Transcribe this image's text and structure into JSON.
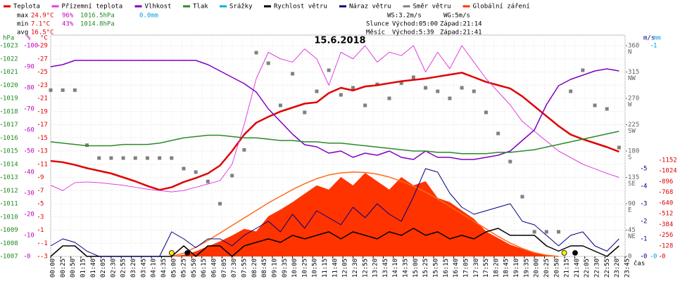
{
  "chart_data": {
    "type": "line",
    "title": "15.6.2018",
    "xlabel": "čas",
    "x": [
      "00:00",
      "00:30",
      "01:00",
      "01:30",
      "02:00",
      "02:30",
      "03:00",
      "03:30",
      "04:00",
      "04:30",
      "05:00",
      "05:30",
      "06:00",
      "06:30",
      "07:00",
      "07:30",
      "08:00",
      "08:30",
      "09:00",
      "09:30",
      "10:00",
      "10:30",
      "11:00",
      "11:30",
      "12:00",
      "12:30",
      "13:00",
      "13:30",
      "14:00",
      "14:30",
      "15:00",
      "15:30",
      "16:00",
      "16:30",
      "17:00",
      "17:30",
      "18:00",
      "18:30",
      "19:00",
      "19:30",
      "20:00",
      "20:30",
      "21:00",
      "21:30",
      "22:00",
      "22:30",
      "23:00",
      "23:30"
    ],
    "xticks": [
      "00:00",
      "00:25",
      "00:50",
      "01:15",
      "01:40",
      "02:05",
      "02:30",
      "02:55",
      "03:20",
      "03:45",
      "04:10",
      "04:35",
      "05:00",
      "05:25",
      "05:50",
      "06:15",
      "06:40",
      "07:05",
      "07:30",
      "07:55",
      "08:20",
      "08:45",
      "09:10",
      "09:35",
      "10:00",
      "10:25",
      "10:50",
      "11:15",
      "11:40",
      "12:05",
      "12:30",
      "12:55",
      "13:20",
      "13:45",
      "14:10",
      "14:35",
      "15:00",
      "15:25",
      "15:50",
      "16:15",
      "16:40",
      "17:05",
      "17:30",
      "17:55",
      "18:20",
      "18:45",
      "19:10",
      "19:35",
      "20:00",
      "20:25",
      "20:50",
      "21:15",
      "21:40",
      "22:05",
      "22:30",
      "22:55",
      "23:20",
      "23:45"
    ],
    "grid": true,
    "axes": {
      "hpa": {
        "unit": "hPa",
        "color": "#1f8a1f",
        "lim": [
          1007,
          1023
        ],
        "ticks": [
          1007,
          1008,
          1009,
          1010,
          1011,
          1012,
          1013,
          1014,
          1015,
          1016,
          1017,
          1018,
          1019,
          1020,
          1021,
          1022,
          1023
        ]
      },
      "pct": {
        "unit": "%",
        "color": "#c000c0",
        "lim": [
          0,
          100
        ],
        "ticks": [
          0,
          10,
          20,
          30,
          40,
          50,
          60,
          70,
          80,
          90,
          100
        ]
      },
      "temp": {
        "unit": "°C",
        "color": "#e00000",
        "lim": [
          -3,
          29
        ],
        "ticks": [
          -3,
          -1,
          1,
          3,
          5,
          7,
          9,
          11,
          13,
          15,
          17,
          19,
          21,
          23,
          25,
          27,
          29
        ]
      },
      "dir": {
        "color": "#606060",
        "lim": [
          0,
          360
        ],
        "ticks": [
          0,
          45,
          90,
          135,
          180,
          225,
          270,
          315,
          360
        ],
        "compass": [
          {
            "value": 45,
            "label": "NE"
          },
          {
            "value": 90,
            "label": "E"
          },
          {
            "value": 135,
            "label": "SE"
          },
          {
            "value": 180,
            "label": "S"
          },
          {
            "value": 225,
            "label": "SW"
          },
          {
            "value": 270,
            "label": "W"
          },
          {
            "value": 315,
            "label": "NW"
          },
          {
            "value": 360,
            "label": "N"
          }
        ]
      },
      "wind": {
        "unit": "m/s",
        "color": "#000080",
        "lim": [
          0,
          12
        ],
        "ticks": [
          0,
          1,
          2,
          3,
          4,
          5
        ]
      },
      "rain": {
        "unit": "mm",
        "color": "#00a0e0",
        "lim": [
          0,
          1
        ],
        "ticks": [
          0,
          1
        ]
      },
      "rad": {
        "color": "#e00000",
        "lim": [
          0,
          1152
        ],
        "ticks": [
          0,
          128,
          256,
          384,
          512,
          640,
          768,
          896,
          1024,
          1152
        ]
      }
    },
    "series": [
      {
        "name": "Teplota",
        "color": "#e00000",
        "axis": "temp",
        "width": 2.5,
        "values": [
          11.5,
          11.3,
          10.9,
          10.4,
          10.0,
          9.6,
          9.0,
          8.4,
          7.7,
          7.1,
          7.5,
          8.3,
          8.9,
          9.6,
          10.8,
          13.0,
          15.5,
          17.3,
          18.2,
          19.0,
          19.6,
          20.2,
          20.4,
          21.8,
          22.6,
          22.2,
          22.8,
          23.0,
          23.3,
          23.6,
          23.8,
          24.0,
          24.3,
          24.6,
          24.9,
          24.2,
          23.5,
          23.0,
          22.5,
          21.3,
          19.8,
          18.3,
          16.8,
          15.5,
          14.8,
          14.2,
          13.6,
          12.9
        ]
      },
      {
        "name": "Přízemní teplota",
        "color": "#e040e0",
        "axis": "temp",
        "width": 1,
        "values": [
          7.8,
          7.0,
          8.2,
          8.3,
          8.2,
          8.0,
          7.8,
          7.5,
          7.2,
          7.0,
          6.8,
          7.0,
          7.5,
          8.0,
          8.5,
          11.0,
          17.0,
          24.0,
          28.0,
          27.0,
          26.5,
          28.5,
          27.0,
          23.0,
          28.0,
          27.0,
          29.0,
          26.5,
          28.0,
          27.5,
          29.0,
          25.0,
          28.0,
          25.5,
          29.0,
          26.5,
          24.0,
          22.0,
          20.0,
          17.5,
          16.0,
          14.5,
          13.0,
          12.0,
          11.0,
          10.3,
          9.6,
          9.0
        ]
      },
      {
        "name": "Vlhkost",
        "color": "#8000c0",
        "axis": "pct",
        "width": 1.5,
        "values": [
          90,
          91,
          93,
          93,
          93,
          93,
          93,
          93,
          93,
          93,
          93,
          93,
          93,
          91,
          88,
          85,
          82,
          78,
          70,
          64,
          58,
          53,
          52,
          49,
          50,
          47,
          49,
          48,
          50,
          47,
          46,
          50,
          47,
          47,
          46,
          46,
          47,
          48,
          50,
          55,
          60,
          72,
          81,
          84,
          86,
          88,
          89,
          88
        ]
      },
      {
        "name": "Tlak",
        "color": "#2a8a2a",
        "axis": "hpa",
        "width": 1.5,
        "values": [
          1015.7,
          1015.6,
          1015.5,
          1015.4,
          1015.4,
          1015.4,
          1015.5,
          1015.5,
          1015.5,
          1015.6,
          1015.8,
          1016.0,
          1016.1,
          1016.2,
          1016.2,
          1016.1,
          1016.0,
          1016.0,
          1015.9,
          1015.8,
          1015.8,
          1015.7,
          1015.7,
          1015.6,
          1015.6,
          1015.5,
          1015.4,
          1015.3,
          1015.2,
          1015.1,
          1015.0,
          1015.0,
          1014.9,
          1014.9,
          1014.8,
          1014.8,
          1014.8,
          1014.9,
          1014.9,
          1015.0,
          1015.1,
          1015.3,
          1015.5,
          1015.7,
          1015.9,
          1016.1,
          1016.3,
          1016.5
        ]
      },
      {
        "name": "Srážky",
        "color": "#00b0e0",
        "axis": "rain"
      },
      {
        "name": "Rychlost větru",
        "color": "#000000",
        "axis": "wind",
        "width": 1.5,
        "values": [
          0,
          0.6,
          0.6,
          0,
          0,
          0,
          0,
          0,
          0,
          0,
          0,
          0.6,
          0,
          0.6,
          0.6,
          0,
          0.6,
          0.8,
          1.0,
          0.8,
          1.2,
          1.0,
          1.2,
          1.4,
          1.0,
          1.4,
          1.2,
          1.0,
          1.4,
          1.2,
          1.6,
          1.2,
          1.4,
          1.0,
          1.2,
          1.0,
          1.4,
          1.6,
          1.2,
          1.2,
          1.2,
          0.6,
          0.3,
          0.6,
          0.6,
          0.3,
          0,
          0.6
        ]
      },
      {
        "name": "Náraz větru",
        "color": "#000080",
        "axis": "wind",
        "width": 1,
        "values": [
          0.6,
          1.0,
          0.8,
          0.3,
          0,
          0,
          0,
          0,
          0,
          0,
          1.4,
          1.0,
          0.5,
          1.0,
          1.0,
          0.6,
          1.2,
          1.6,
          2.0,
          1.4,
          2.4,
          1.6,
          2.6,
          2.2,
          1.8,
          2.8,
          2.2,
          3.0,
          2.4,
          2.0,
          3.4,
          5.0,
          4.8,
          3.6,
          2.8,
          2.4,
          2.6,
          2.8,
          3.0,
          2.0,
          1.8,
          1.2,
          0.6,
          1.2,
          1.4,
          0.6,
          0.3,
          1.0
        ]
      },
      {
        "name": "Směr větru",
        "color": "#808080",
        "axis": "dir",
        "style": "points",
        "values": [
          284,
          284,
          284,
          190,
          168,
          168,
          168,
          168,
          168,
          168,
          168,
          150,
          144,
          128,
          90,
          138,
          182,
          348,
          330,
          258,
          312,
          246,
          282,
          318,
          276,
          288,
          258,
          294,
          270,
          296,
          306,
          288,
          282,
          270,
          288,
          282,
          246,
          210,
          162,
          102,
          42,
          42,
          42,
          282,
          318,
          258,
          252,
          186
        ]
      },
      {
        "name": "Globální záření",
        "color": "#ff3300",
        "axis": "rad",
        "style": "area",
        "values": [
          0,
          0,
          0,
          0,
          0,
          0,
          0,
          0,
          0,
          0,
          0,
          20,
          60,
          120,
          180,
          250,
          330,
          300,
          480,
          560,
          650,
          750,
          850,
          800,
          950,
          850,
          1000,
          900,
          800,
          950,
          850,
          900,
          700,
          650,
          550,
          450,
          300,
          220,
          140,
          90,
          45,
          15,
          0,
          0,
          0,
          0,
          0,
          0
        ]
      },
      {
        "color": "#ff6a1a",
        "axis": "rad",
        "width": 1.5,
        "values": [
          null,
          null,
          null,
          null,
          null,
          null,
          null,
          null,
          null,
          null,
          0,
          40,
          110,
          190,
          280,
          370,
          460,
          550,
          640,
          720,
          800,
          870,
          930,
          975,
          1000,
          1010,
          1005,
          985,
          950,
          900,
          840,
          770,
          690,
          600,
          510,
          420,
          330,
          240,
          160,
          95,
          45,
          15,
          0,
          null,
          null,
          null,
          null,
          null
        ]
      }
    ],
    "stats": [
      {
        "label": "max",
        "temp": "24.9°C",
        "hum": "96%",
        "press": "1016.5hPa",
        "rain": "0.0mm"
      },
      {
        "label": "min",
        "temp": "7.1°C",
        "hum": "43%",
        "press": "1014.8hPa"
      },
      {
        "label": "avg",
        "temp": "16.5°C"
      }
    ],
    "wind_summary": [
      "WS:3.2m/s",
      "WG:5m/s"
    ],
    "sun": {
      "label": "Slunce",
      "rise": "Východ:05:00",
      "set": "Západ:21:14"
    },
    "moon": {
      "label": "Měsíc",
      "rise": "Východ:5:39",
      "set": "Západ:21:41"
    }
  }
}
